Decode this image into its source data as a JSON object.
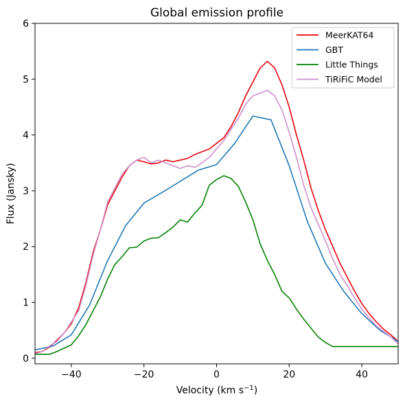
{
  "chart_data": {
    "type": "line",
    "title": "Global emission profile",
    "xlabel": "Velocity (km s",
    "xlabel_sup": "−1",
    "xlabel_end": ")",
    "ylabel": "Flux (Jansky)",
    "xlim": [
      -50,
      50
    ],
    "ylim": [
      -0.1,
      6
    ],
    "xticks": [
      -40,
      -20,
      0,
      20,
      40
    ],
    "xtick_labels": [
      "−40",
      "−20",
      "0",
      "20",
      "40"
    ],
    "yticks": [
      0,
      1,
      2,
      3,
      4,
      5,
      6
    ],
    "ytick_labels": [
      "0",
      "1",
      "2",
      "3",
      "4",
      "5",
      "6"
    ],
    "grid": false,
    "legend_position": "top-right",
    "series": [
      {
        "name": "MeerKAT64",
        "color": "#e8000b",
        "x": [
          -50,
          -48,
          -46,
          -44,
          -42,
          -40,
          -38,
          -36,
          -34,
          -32,
          -30,
          -28,
          -26,
          -24,
          -22,
          -20,
          -18,
          -16,
          -14,
          -12,
          -10,
          -8,
          -6,
          -4,
          -2,
          0,
          2,
          4,
          6,
          8,
          10,
          12,
          14,
          16,
          18,
          20,
          22,
          24,
          26,
          28,
          30,
          32,
          34,
          36,
          38,
          40,
          42,
          44,
          46,
          48,
          50
        ],
        "y": [
          0.1,
          0.12,
          0.2,
          0.32,
          0.45,
          0.62,
          0.9,
          1.35,
          1.9,
          2.3,
          2.75,
          3.0,
          3.25,
          3.45,
          3.55,
          3.52,
          3.48,
          3.5,
          3.55,
          3.52,
          3.55,
          3.58,
          3.65,
          3.7,
          3.75,
          3.85,
          3.95,
          4.15,
          4.4,
          4.7,
          4.95,
          5.2,
          5.32,
          5.2,
          4.9,
          4.5,
          4.0,
          3.55,
          3.05,
          2.65,
          2.3,
          2.0,
          1.7,
          1.45,
          1.2,
          0.98,
          0.8,
          0.65,
          0.52,
          0.42,
          0.3
        ]
      },
      {
        "name": "GBT",
        "color": "#1f77b4",
        "x": [
          -50,
          -45,
          -40,
          -35,
          -30,
          -25,
          -20,
          -15,
          -10,
          -5,
          0,
          5,
          10,
          15,
          20,
          25,
          30,
          35,
          40,
          45,
          50
        ],
        "y": [
          0.15,
          0.22,
          0.42,
          0.95,
          1.75,
          2.38,
          2.78,
          2.97,
          3.17,
          3.37,
          3.47,
          3.85,
          4.34,
          4.27,
          3.45,
          2.45,
          1.7,
          1.2,
          0.8,
          0.5,
          0.3
        ]
      },
      {
        "name": "Little Things",
        "color": "#008000",
        "x": [
          -50,
          -48,
          -46,
          -44,
          -42,
          -40,
          -38,
          -36,
          -34,
          -32,
          -30,
          -28,
          -26,
          -24,
          -22,
          -20,
          -18,
          -16,
          -14,
          -12,
          -10,
          -8,
          -6,
          -4,
          -2,
          0,
          2,
          4,
          6,
          8,
          10,
          12,
          14,
          16,
          18,
          20,
          22,
          24,
          26,
          28,
          30,
          32,
          34,
          36,
          38,
          40,
          42,
          44,
          46,
          48,
          50
        ],
        "y": [
          0.07,
          0.07,
          0.07,
          0.12,
          0.18,
          0.24,
          0.4,
          0.6,
          0.85,
          1.1,
          1.42,
          1.68,
          1.82,
          1.98,
          1.99,
          2.1,
          2.15,
          2.16,
          2.25,
          2.35,
          2.48,
          2.44,
          2.6,
          2.74,
          3.1,
          3.2,
          3.27,
          3.22,
          3.08,
          2.8,
          2.48,
          2.05,
          1.75,
          1.5,
          1.2,
          1.08,
          0.88,
          0.7,
          0.54,
          0.38,
          0.28,
          0.21,
          0.21,
          0.21,
          0.21,
          0.21,
          0.21,
          0.21,
          0.21,
          0.21,
          0.21
        ]
      },
      {
        "name": "TiRiFiC Model",
        "color": "#cc8fcc",
        "x": [
          -50,
          -48,
          -46,
          -44,
          -42,
          -40,
          -38,
          -36,
          -34,
          -32,
          -30,
          -28,
          -26,
          -24,
          -22,
          -20,
          -18,
          -16,
          -14,
          -12,
          -10,
          -8,
          -6,
          -4,
          -2,
          0,
          2,
          4,
          6,
          8,
          10,
          12,
          14,
          16,
          18,
          20,
          22,
          24,
          26,
          28,
          30,
          32,
          34,
          36,
          38,
          40,
          42,
          44,
          46,
          48,
          50
        ],
        "y": [
          0.08,
          0.12,
          0.22,
          0.3,
          0.45,
          0.65,
          0.85,
          1.3,
          1.85,
          2.3,
          2.8,
          3.05,
          3.3,
          3.45,
          3.55,
          3.6,
          3.5,
          3.55,
          3.5,
          3.45,
          3.4,
          3.45,
          3.42,
          3.5,
          3.6,
          3.75,
          3.9,
          4.1,
          4.3,
          4.55,
          4.7,
          4.75,
          4.8,
          4.7,
          4.45,
          4.05,
          3.6,
          3.1,
          2.7,
          2.4,
          2.1,
          1.78,
          1.5,
          1.3,
          1.08,
          0.88,
          0.72,
          0.58,
          0.48,
          0.38,
          0.26
        ]
      }
    ]
  }
}
